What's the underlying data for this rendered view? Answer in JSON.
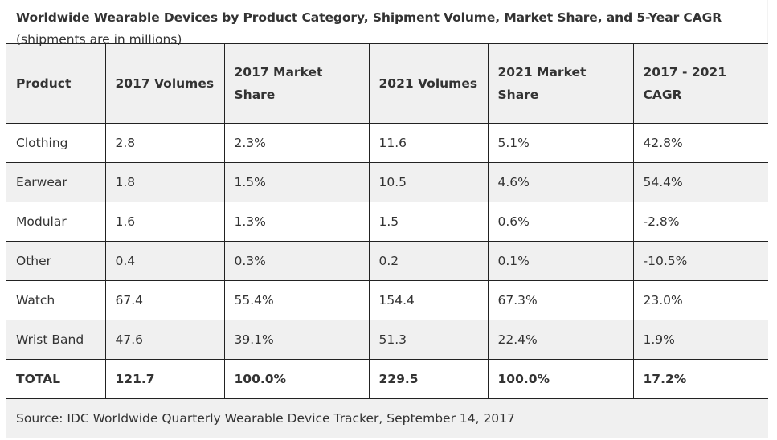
{
  "title": "Worldwide Wearable Devices by Product Category, Shipment Volume, Market Share, and 5-Year CAGR",
  "subtitle": "(shipments are in millions)",
  "table": {
    "headers": [
      "Product",
      "2017 Volumes",
      "2017 Market Share",
      "2021 Volumes",
      "2021 Market Share",
      "2017 - 2021 CAGR"
    ],
    "rows": [
      [
        "Clothing",
        "2.8",
        "2.3%",
        "11.6",
        "5.1%",
        "42.8%"
      ],
      [
        "Earwear",
        "1.8",
        "1.5%",
        "10.5",
        "4.6%",
        "54.4%"
      ],
      [
        "Modular",
        "1.6",
        "1.3%",
        "1.5",
        "0.6%",
        "-2.8%"
      ],
      [
        "Other",
        "0.4",
        "0.3%",
        "0.2",
        "0.1%",
        "-10.5%"
      ],
      [
        "Watch",
        "67.4",
        "55.4%",
        "154.4",
        "67.3%",
        "23.0%"
      ],
      [
        "Wrist Band",
        "47.6",
        "39.1%",
        "51.3",
        "22.4%",
        "1.9%"
      ]
    ],
    "total": [
      "TOTAL",
      "121.7",
      "100.0%",
      "229.5",
      "100.0%",
      "17.2%"
    ]
  },
  "source": "Source: IDC Worldwide Quarterly Wearable Device Tracker, September 14, 2017",
  "colors": {
    "header_bg": "#f0f0f0",
    "alt_row_bg": "#f0f0f0",
    "border": "#222222",
    "text": "#333333"
  }
}
